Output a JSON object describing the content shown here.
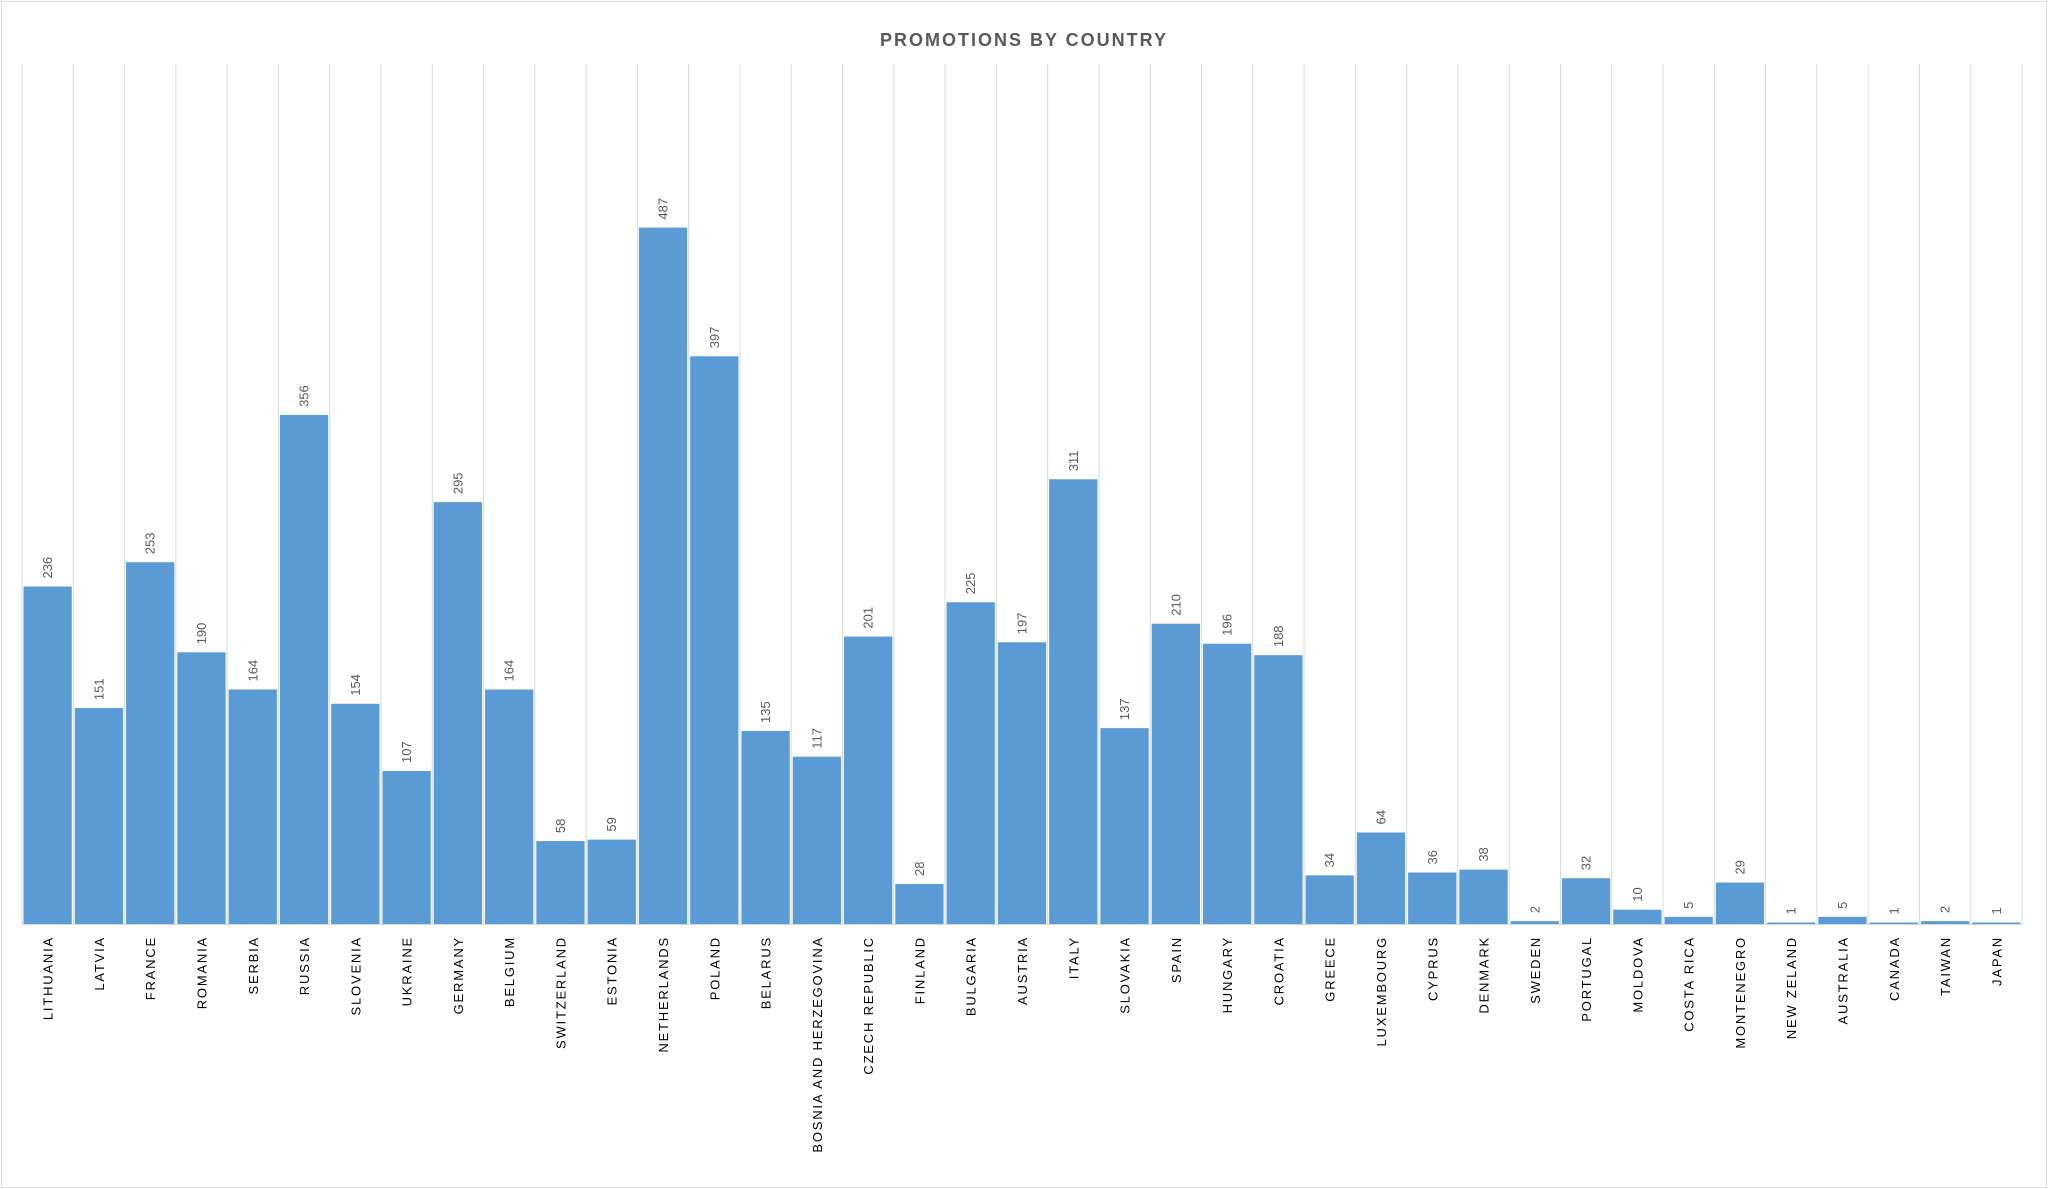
{
  "chart_data": {
    "type": "bar",
    "title": "PROMOTIONS BY COUNTRY",
    "xlabel": "",
    "ylabel": "",
    "ylim": [
      0,
      600
    ],
    "grid": "vertical separators between categories",
    "legend": "none",
    "bar_color": "#5b9bd5",
    "categories": [
      "LITHUANIA",
      "LATVIA",
      "FRANCE",
      "ROMANIA",
      "SERBIA",
      "RUSSIA",
      "SLOVENIA",
      "UKRAINE",
      "GERMANY",
      "BELGIUM",
      "SWITZERLAND",
      "ESTONIA",
      "NETHERLANDS",
      "POLAND",
      "BELARUS",
      "BOSNIA AND HERZEGOVINA",
      "CZECH REPUBLIC",
      "FINLAND",
      "BULGARIA",
      "AUSTRIA",
      "ITALY",
      "SLOVAKIA",
      "SPAIN",
      "HUNGARY",
      "CROATIA",
      "GREECE",
      "LUXEMBOURG",
      "CYPRUS",
      "DENMARK",
      "SWEDEN",
      "PORTUGAL",
      "MOLDOVA",
      "COSTA RICA",
      "MONTENEGRO",
      "NEW ZELAND",
      "AUSTRALIA",
      "CANADA",
      "TAIWAN",
      "JAPAN"
    ],
    "values": [
      236,
      151,
      253,
      190,
      164,
      356,
      154,
      107,
      295,
      164,
      58,
      59,
      487,
      397,
      135,
      117,
      201,
      28,
      225,
      197,
      311,
      137,
      210,
      196,
      188,
      34,
      64,
      36,
      38,
      2,
      32,
      10,
      5,
      29,
      1,
      5,
      1,
      2,
      1
    ]
  }
}
